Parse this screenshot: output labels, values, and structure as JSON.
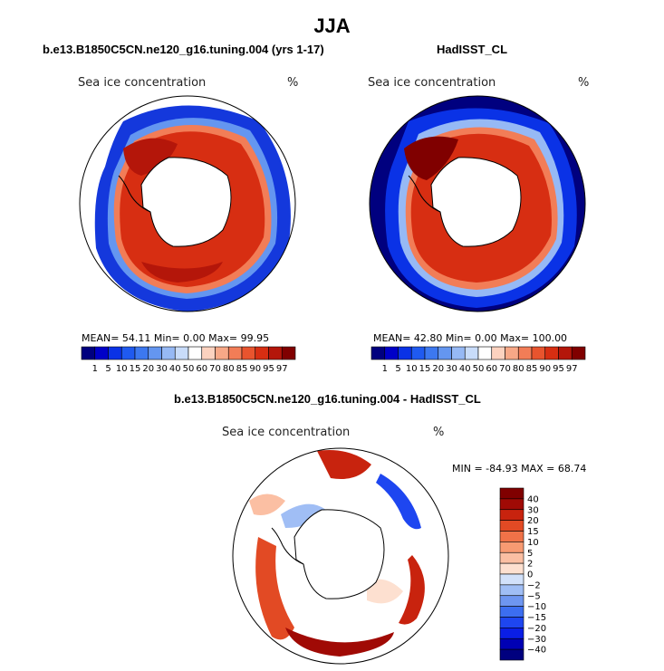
{
  "figure": {
    "season": "JJA",
    "panels": [
      {
        "title": "b.e13.B1850C5CN.ne120_g16.tuning.004 (yrs 1-17)",
        "field_label": "Sea ice concentration",
        "units": "%",
        "stats": "MEAN=  54.11  Min=   0.00  Max=  99.95"
      },
      {
        "title": "HadISST_CL",
        "field_label": "Sea ice concentration",
        "units": "%",
        "stats": "MEAN=  42.80  Min=   0.00  Max= 100.00"
      },
      {
        "title": "b.e13.B1850C5CN.ne120_g16.tuning.004 - HadISST_CL",
        "field_label": "Sea ice concentration",
        "units": "%",
        "stats": "MIN = -84.93 MAX =  68.74"
      }
    ]
  },
  "chart_data": [
    {
      "type": "heatmap",
      "map_projection": "south polar stereographic",
      "title": "b.e13.B1850C5CN.ne120_g16.tuning.004 (yrs 1-17)",
      "variable": "Sea ice concentration",
      "units": "%",
      "mean": 54.11,
      "min": 0.0,
      "max": 99.95,
      "colorbar_levels": [
        1,
        5,
        10,
        15,
        20,
        30,
        40,
        50,
        60,
        70,
        80,
        85,
        90,
        95,
        97
      ],
      "colorbar_tick_labels": [
        "1",
        "5",
        "10",
        "15",
        "20",
        "30",
        "40",
        "50",
        "60",
        "70",
        "80",
        "85",
        "90",
        "95",
        "97"
      ],
      "colorbar_colors": [
        "#00007f",
        "#0000c8",
        "#0a32e6",
        "#1f5af0",
        "#3c78f0",
        "#6496f0",
        "#96b9f5",
        "#c8dcfa",
        "#ffffff",
        "#fcd2bf",
        "#f7a887",
        "#f27d57",
        "#e8542e",
        "#d72e12",
        "#b4160a",
        "#800000"
      ]
    },
    {
      "type": "heatmap",
      "map_projection": "south polar stereographic",
      "title": "HadISST_CL",
      "variable": "Sea ice concentration",
      "units": "%",
      "mean": 42.8,
      "min": 0.0,
      "max": 100.0,
      "colorbar_levels": [
        1,
        5,
        10,
        15,
        20,
        30,
        40,
        50,
        60,
        70,
        80,
        85,
        90,
        95,
        97
      ],
      "colorbar_tick_labels": [
        "1",
        "5",
        "10",
        "15",
        "20",
        "30",
        "40",
        "50",
        "60",
        "70",
        "80",
        "85",
        "90",
        "95",
        "97"
      ],
      "colorbar_colors": [
        "#00007f",
        "#0000c8",
        "#0a32e6",
        "#1f5af0",
        "#3c78f0",
        "#6496f0",
        "#96b9f5",
        "#c8dcfa",
        "#ffffff",
        "#fcd2bf",
        "#f7a887",
        "#f27d57",
        "#e8542e",
        "#d72e12",
        "#b4160a",
        "#800000"
      ]
    },
    {
      "type": "heatmap",
      "map_projection": "south polar stereographic",
      "title": "b.e13.B1850C5CN.ne120_g16.tuning.004 - HadISST_CL",
      "variable": "Sea ice concentration",
      "units": "%",
      "min": -84.93,
      "max": 68.74,
      "colorbar_orientation": "vertical",
      "colorbar_levels": [
        -40,
        -30,
        -20,
        -15,
        -10,
        -5,
        -2,
        0,
        2,
        5,
        10,
        15,
        20,
        30,
        40
      ],
      "colorbar_tick_labels": [
        "40",
        "30",
        "20",
        "15",
        "10",
        "5",
        "2",
        "0",
        "−2",
        "−5",
        "−10",
        "−15",
        "−20",
        "−30",
        "−40"
      ],
      "colorbar_colors": [
        "#00007f",
        "#0000b4",
        "#0a1ee6",
        "#1e46f0",
        "#3c6ef0",
        "#6e96f0",
        "#a0bef5",
        "#d2e1fa",
        "#fde0d0",
        "#fbbfa3",
        "#f79a72",
        "#f07248",
        "#e24a24",
        "#c8230e",
        "#a00a05",
        "#800000"
      ]
    }
  ]
}
